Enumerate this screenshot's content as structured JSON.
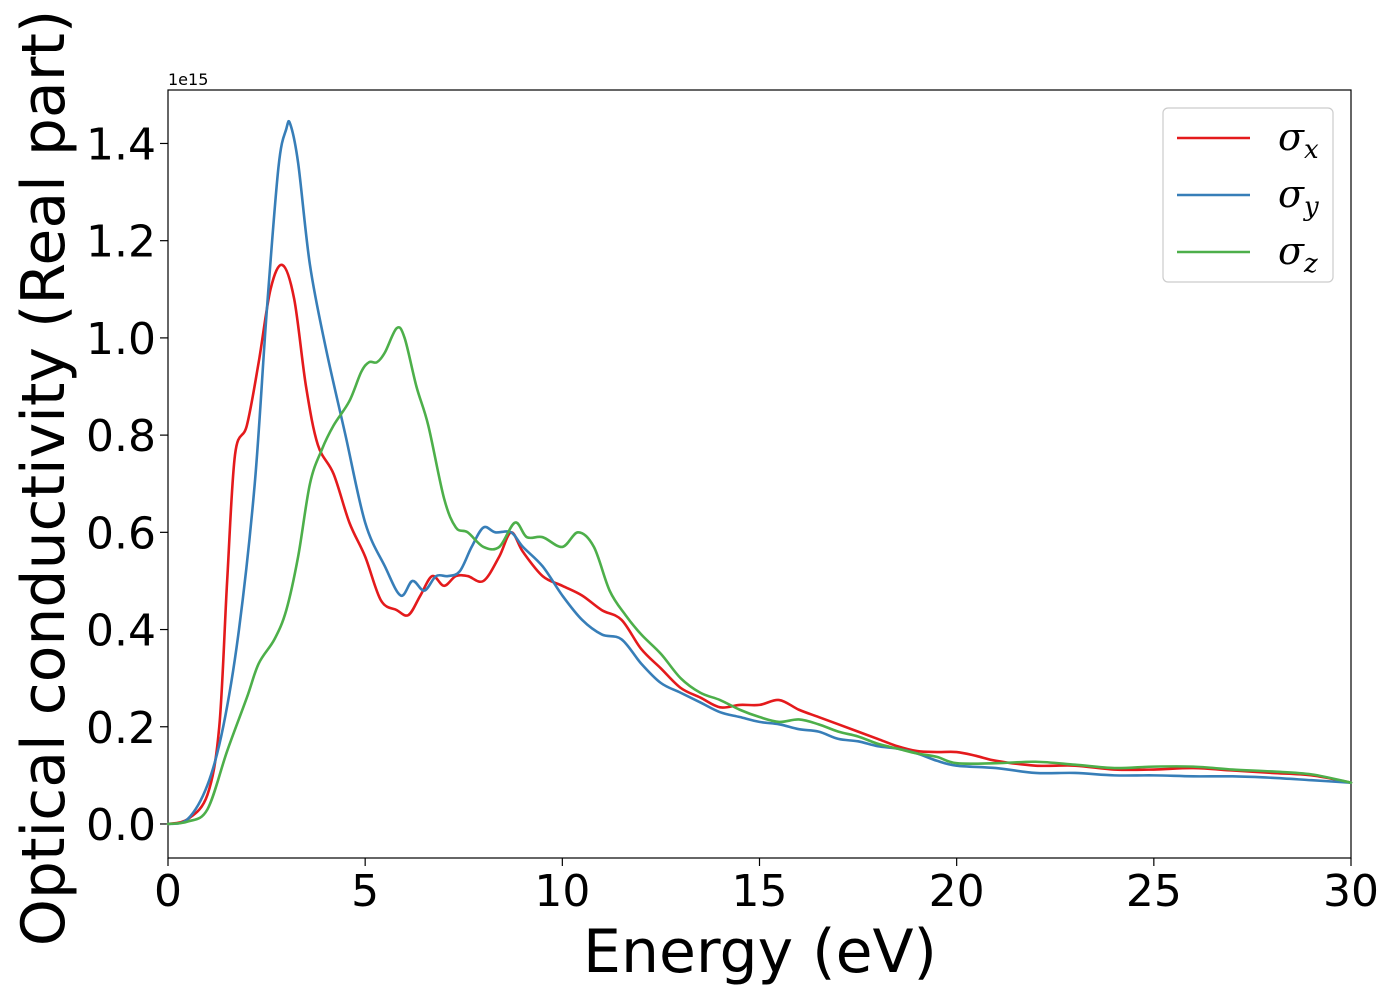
{
  "chart_data": {
    "type": "line",
    "title": "",
    "xlabel": "Energy (eV)",
    "ylabel": "Optical conductivity (Real part)",
    "y_offset_label": "1e15",
    "xlim": [
      0,
      30
    ],
    "ylim": [
      -0.07,
      1.51
    ],
    "x_ticks": [
      0,
      5,
      10,
      15,
      20,
      25,
      30
    ],
    "x_tick_labels": [
      "0",
      "5",
      "10",
      "15",
      "20",
      "25",
      "30"
    ],
    "y_ticks": [
      0.0,
      0.2,
      0.4,
      0.6,
      0.8,
      1.0,
      1.2,
      1.4
    ],
    "y_tick_labels": [
      "0.0",
      "0.2",
      "0.4",
      "0.6",
      "0.8",
      "1.0",
      "1.2",
      "1.4"
    ],
    "grid": false,
    "legend_position": "top-right",
    "series": [
      {
        "name": "σx",
        "symbol": "σ",
        "sub": "x",
        "color": "#e41a1c",
        "x": [
          0,
          0.5,
          1.0,
          1.3,
          1.5,
          1.7,
          2.0,
          2.3,
          2.6,
          2.9,
          3.2,
          3.5,
          3.8,
          4.2,
          4.6,
          5.0,
          5.4,
          5.8,
          6.1,
          6.4,
          6.7,
          7.0,
          7.3,
          7.6,
          8.0,
          8.4,
          8.7,
          9.0,
          9.5,
          10.0,
          10.5,
          11.0,
          11.5,
          12.0,
          12.5,
          13.0,
          13.5,
          14.0,
          14.5,
          15.0,
          15.5,
          16.0,
          16.5,
          17.0,
          17.5,
          18.0,
          18.5,
          19.0,
          19.5,
          20.0,
          20.5,
          21.0,
          22.0,
          23.0,
          24.0,
          25.0,
          26.0,
          27.0,
          28.0,
          29.0,
          30.0
        ],
        "y": [
          0.0,
          0.01,
          0.06,
          0.2,
          0.5,
          0.76,
          0.82,
          0.95,
          1.1,
          1.15,
          1.08,
          0.9,
          0.78,
          0.72,
          0.62,
          0.55,
          0.46,
          0.44,
          0.43,
          0.47,
          0.51,
          0.49,
          0.51,
          0.51,
          0.5,
          0.55,
          0.6,
          0.56,
          0.51,
          0.49,
          0.47,
          0.44,
          0.42,
          0.36,
          0.32,
          0.28,
          0.26,
          0.24,
          0.245,
          0.245,
          0.255,
          0.235,
          0.22,
          0.205,
          0.19,
          0.175,
          0.16,
          0.15,
          0.148,
          0.148,
          0.14,
          0.13,
          0.12,
          0.12,
          0.112,
          0.112,
          0.115,
          0.11,
          0.105,
          0.1,
          0.085
        ]
      },
      {
        "name": "σy",
        "symbol": "σ",
        "sub": "y",
        "color": "#377eb8",
        "x": [
          0,
          0.5,
          1.0,
          1.4,
          1.8,
          2.2,
          2.5,
          2.8,
          3.0,
          3.1,
          3.3,
          3.6,
          4.0,
          4.5,
          5.0,
          5.5,
          5.9,
          6.2,
          6.5,
          6.8,
          7.1,
          7.4,
          7.7,
          8.0,
          8.3,
          8.7,
          9.0,
          9.5,
          10.0,
          10.5,
          11.0,
          11.5,
          12.0,
          12.5,
          13.0,
          13.5,
          14.0,
          14.5,
          15.0,
          15.5,
          16.0,
          16.5,
          17.0,
          17.5,
          18.0,
          18.5,
          19.0,
          19.5,
          20.0,
          21.0,
          22.0,
          23.0,
          24.0,
          25.0,
          26.0,
          27.0,
          28.0,
          29.0,
          30.0
        ],
        "y": [
          0.0,
          0.01,
          0.08,
          0.2,
          0.4,
          0.7,
          1.05,
          1.35,
          1.43,
          1.44,
          1.36,
          1.15,
          0.98,
          0.8,
          0.62,
          0.53,
          0.47,
          0.5,
          0.48,
          0.51,
          0.51,
          0.52,
          0.57,
          0.61,
          0.6,
          0.6,
          0.57,
          0.53,
          0.47,
          0.42,
          0.39,
          0.38,
          0.33,
          0.29,
          0.27,
          0.25,
          0.23,
          0.22,
          0.21,
          0.205,
          0.195,
          0.19,
          0.175,
          0.17,
          0.16,
          0.155,
          0.145,
          0.13,
          0.12,
          0.115,
          0.105,
          0.105,
          0.1,
          0.1,
          0.098,
          0.098,
          0.095,
          0.09,
          0.085
        ]
      },
      {
        "name": "σz",
        "symbol": "σ",
        "sub": "z",
        "color": "#4daf4a",
        "x": [
          0,
          0.5,
          1.0,
          1.5,
          2.0,
          2.3,
          2.7,
          3.0,
          3.3,
          3.6,
          3.9,
          4.2,
          4.6,
          4.9,
          5.1,
          5.3,
          5.5,
          5.8,
          6.0,
          6.3,
          6.6,
          7.0,
          7.3,
          7.6,
          8.0,
          8.4,
          8.8,
          9.1,
          9.5,
          10.0,
          10.4,
          10.8,
          11.2,
          11.6,
          12.0,
          12.5,
          13.0,
          13.5,
          14.0,
          14.5,
          15.0,
          15.5,
          16.0,
          16.5,
          17.0,
          17.5,
          18.0,
          18.5,
          19.0,
          19.5,
          20.0,
          21.0,
          22.0,
          23.0,
          24.0,
          25.0,
          26.0,
          27.0,
          28.0,
          29.0,
          30.0
        ],
        "y": [
          0.0,
          0.005,
          0.03,
          0.15,
          0.26,
          0.33,
          0.38,
          0.44,
          0.55,
          0.7,
          0.77,
          0.82,
          0.87,
          0.93,
          0.95,
          0.95,
          0.97,
          1.02,
          1.0,
          0.9,
          0.82,
          0.67,
          0.61,
          0.6,
          0.57,
          0.57,
          0.62,
          0.59,
          0.59,
          0.57,
          0.6,
          0.57,
          0.48,
          0.43,
          0.39,
          0.35,
          0.3,
          0.27,
          0.255,
          0.235,
          0.22,
          0.21,
          0.215,
          0.205,
          0.19,
          0.18,
          0.165,
          0.155,
          0.145,
          0.138,
          0.125,
          0.125,
          0.128,
          0.122,
          0.115,
          0.118,
          0.118,
          0.112,
          0.108,
          0.102,
          0.085
        ]
      }
    ]
  }
}
